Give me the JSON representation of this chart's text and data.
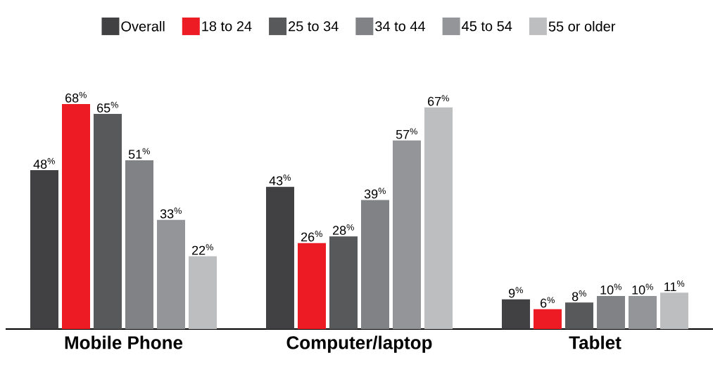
{
  "chart_data": {
    "type": "bar",
    "legend": "top",
    "categories": [
      "Mobile Phone",
      "Computer/laptop",
      "Tablet"
    ],
    "series": [
      {
        "name": "Overall",
        "color": "#414042",
        "values": [
          48,
          43,
          9
        ],
        "value_labels": [
          "48$^{%}$",
          "43$^{%}$",
          "9$^{%}$"
        ]
      },
      {
        "name": "18 to 24",
        "color": "#ed1c24",
        "values": [
          68,
          26,
          6
        ],
        "value_labels": [
          "68$^{%}$",
          "26$^{%}$",
          "6$^{%}$"
        ]
      },
      {
        "name": "25 to 34",
        "color": "#58595b",
        "values": [
          65,
          28,
          8
        ],
        "value_labels": [
          "65$^{%}$",
          "28$^{%}$",
          "8$^{%}$"
        ]
      },
      {
        "name": "34 to 44",
        "color": "#808285",
        "values": [
          51,
          39,
          10
        ],
        "value_labels": [
          "51$^{%}$",
          "39$^{%}$",
          "10$^{%}$"
        ]
      },
      {
        "name": "45 to 54",
        "color": "#939598",
        "values": [
          33,
          57,
          10
        ],
        "value_labels": [
          "33$^{%}$",
          "57$^{%}$",
          "10$^{%}$"
        ]
      },
      {
        "name": "55 or older",
        "color": "#bcbec0",
        "values": [
          22,
          67,
          11
        ],
        "value_labels": [
          "22$^{%}$",
          "67$^{%}$",
          "11$^{%}$"
        ]
      }
    ]
  }
}
